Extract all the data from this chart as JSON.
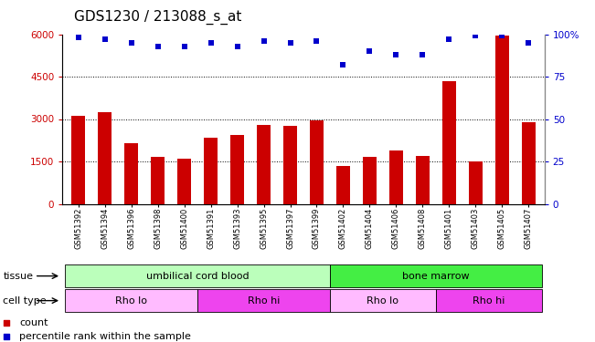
{
  "title": "GDS1230 / 213088_s_at",
  "samples": [
    "GSM51392",
    "GSM51394",
    "GSM51396",
    "GSM51398",
    "GSM51400",
    "GSM51391",
    "GSM51393",
    "GSM51395",
    "GSM51397",
    "GSM51399",
    "GSM51402",
    "GSM51404",
    "GSM51406",
    "GSM51408",
    "GSM51401",
    "GSM51403",
    "GSM51405",
    "GSM51407"
  ],
  "counts": [
    3100,
    3250,
    2150,
    1650,
    1600,
    2350,
    2450,
    2800,
    2750,
    2950,
    1350,
    1650,
    1900,
    1700,
    4350,
    1500,
    5950,
    2900
  ],
  "percentile_ranks": [
    98,
    97,
    95,
    93,
    93,
    95,
    93,
    96,
    95,
    96,
    82,
    90,
    88,
    88,
    97,
    99,
    99,
    95
  ],
  "ylim_left": [
    0,
    6000
  ],
  "ylim_right": [
    0,
    100
  ],
  "yticks_left": [
    0,
    1500,
    3000,
    4500,
    6000
  ],
  "yticks_right": [
    0,
    25,
    50,
    75,
    100
  ],
  "tissue_groups": [
    {
      "label": "umbilical cord blood",
      "start": 0,
      "end": 10,
      "color": "#bbffbb"
    },
    {
      "label": "bone marrow",
      "start": 10,
      "end": 18,
      "color": "#44ee44"
    }
  ],
  "cell_type_groups": [
    {
      "label": "Rho lo",
      "start": 0,
      "end": 5,
      "color": "#ffbbff"
    },
    {
      "label": "Rho hi",
      "start": 5,
      "end": 10,
      "color": "#ee44ee"
    },
    {
      "label": "Rho lo",
      "start": 10,
      "end": 14,
      "color": "#ffbbff"
    },
    {
      "label": "Rho hi",
      "start": 14,
      "end": 18,
      "color": "#ee44ee"
    }
  ],
  "bar_color": "#cc0000",
  "dot_color": "#0000cc",
  "bar_width": 0.5,
  "background_color": "#ffffff",
  "legend_count_label": "count",
  "legend_pct_label": "percentile rank within the sample",
  "tissue_label": "tissue",
  "cell_type_label": "cell type",
  "title_fontsize": 11,
  "tick_fontsize": 7.5,
  "label_fontsize": 8,
  "annot_fontsize": 8
}
